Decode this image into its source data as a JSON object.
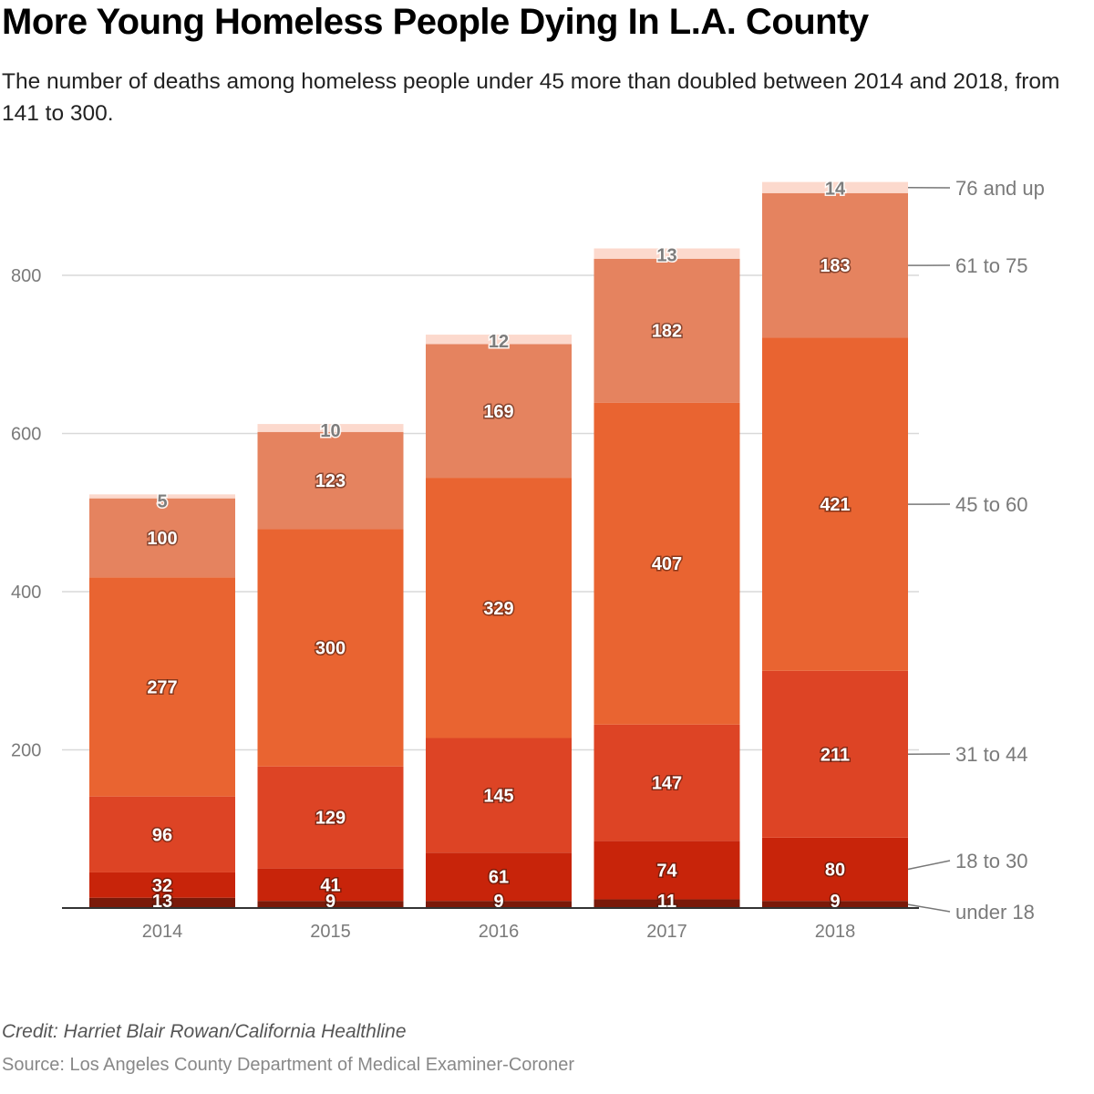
{
  "title": "More Young Homeless People Dying In L.A. County",
  "subtitle": "The number of deaths among homeless people under 45 more than doubled between 2014 and 2018, from 141 to 300.",
  "credit": "Credit: Harriet Blair Rowan/California Healthline",
  "source": "Source: Los Angeles County Department of Medical Examiner-Coroner",
  "chart_data": {
    "type": "bar",
    "stacked": true,
    "title": "More Young Homeless People Dying In L.A. County",
    "xlabel": "",
    "ylabel": "",
    "categories": [
      "2014",
      "2015",
      "2016",
      "2017",
      "2018"
    ],
    "ylim": [
      0,
      920
    ],
    "yticks": [
      200,
      400,
      600,
      800
    ],
    "grid": true,
    "legend": "right (inline labels)",
    "series": [
      {
        "name": "under 18",
        "color": "#7a1a0a",
        "values": [
          13,
          9,
          9,
          11,
          9
        ]
      },
      {
        "name": "18 to 30",
        "color": "#c8240a",
        "values": [
          32,
          41,
          61,
          74,
          80
        ]
      },
      {
        "name": "31 to 44",
        "color": "#dd4425",
        "values": [
          96,
          129,
          145,
          147,
          211
        ]
      },
      {
        "name": "45 to 60",
        "color": "#e96431",
        "values": [
          277,
          300,
          329,
          407,
          421
        ]
      },
      {
        "name": "61 to 75",
        "color": "#e5835f",
        "values": [
          100,
          123,
          169,
          182,
          183
        ]
      },
      {
        "name": "76 and up",
        "color": "#fcd9cd",
        "values": [
          5,
          10,
          12,
          13,
          14
        ]
      }
    ]
  }
}
